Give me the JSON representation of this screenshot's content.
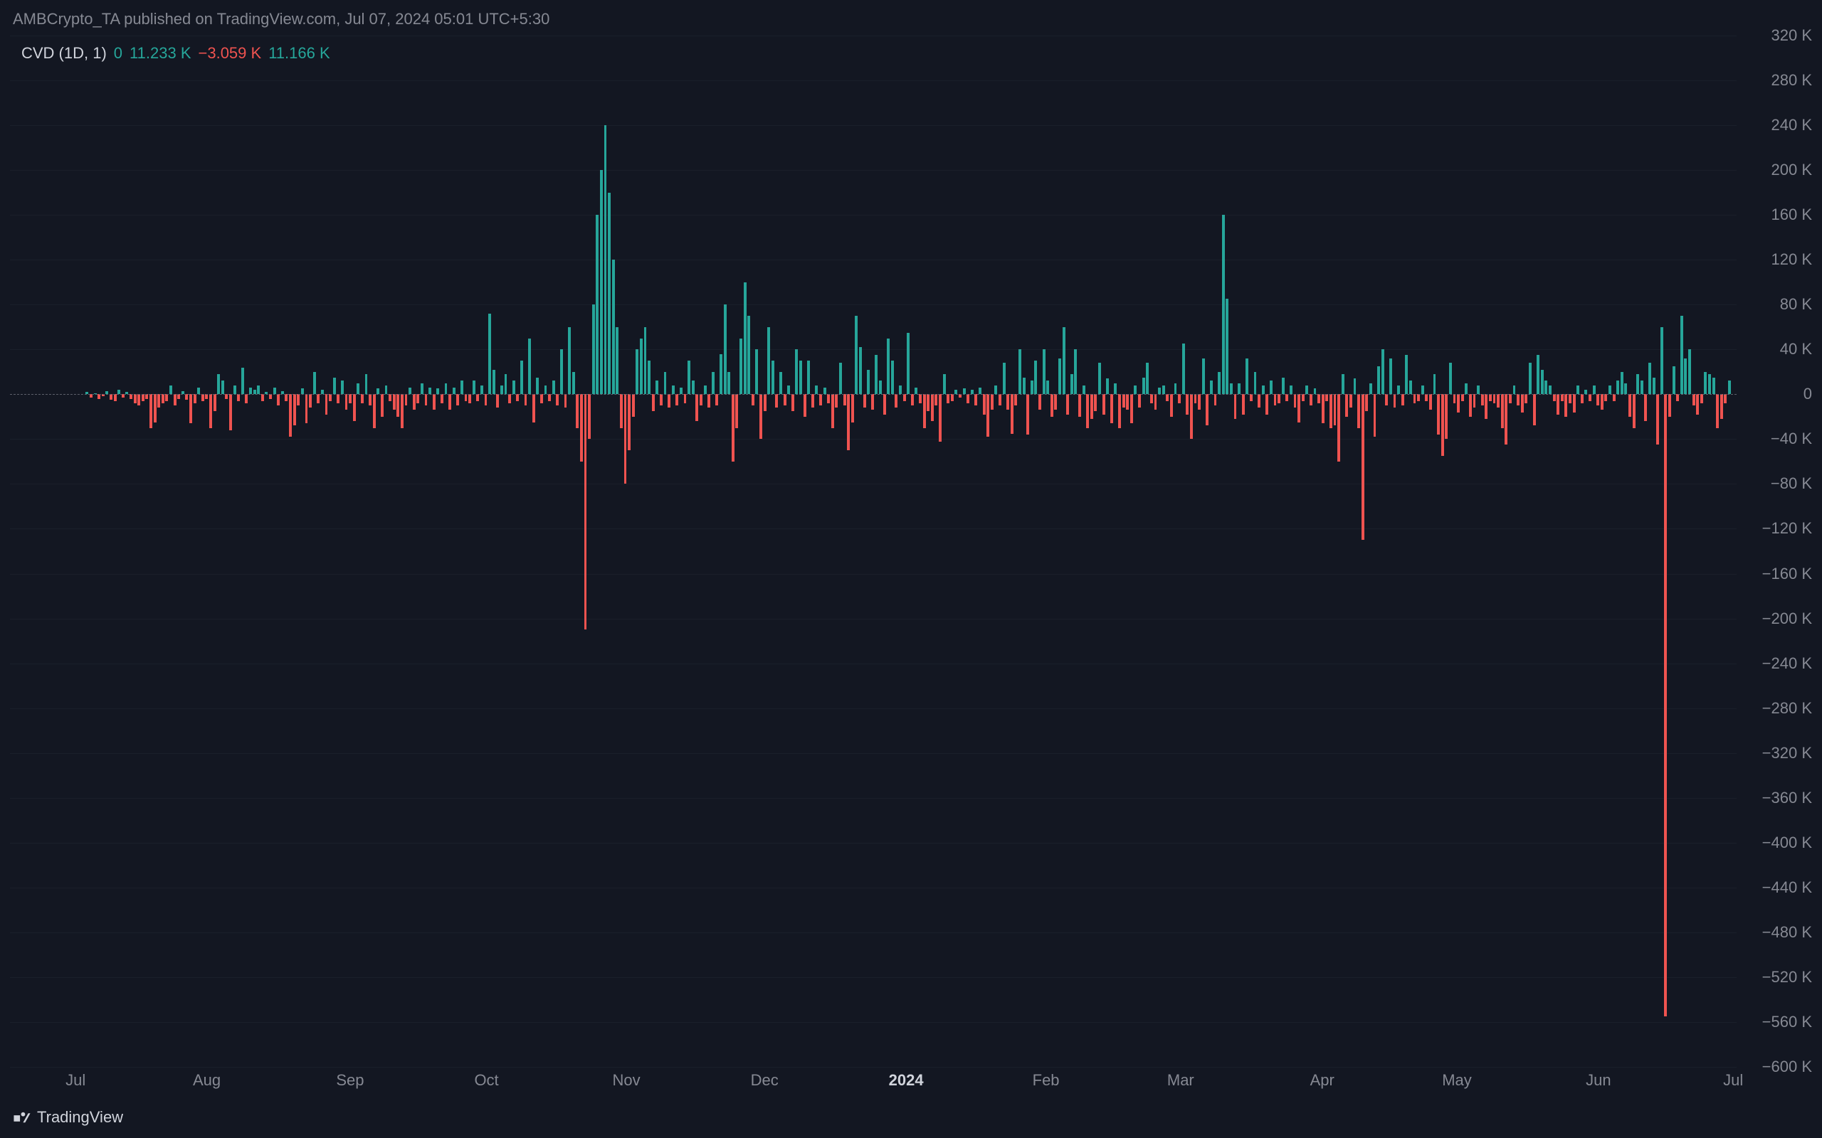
{
  "header": {
    "attribution": "AMBCrypto_TA published on TradingView.com, Jul 07, 2024 05:01 UTC+5:30"
  },
  "legend": {
    "name": "CVD (1D, 1)",
    "open": "0",
    "high": "11.233 K",
    "low": "−3.059 K",
    "close": "11.166 K"
  },
  "footer": {
    "brand": "TradingView"
  },
  "chart": {
    "type": "bar",
    "background_color": "#131722",
    "positive_color": "#26a69a",
    "negative_color": "#ef5350",
    "grid_color": "rgba(120,123,134,0.08)",
    "zero_line_color": "#5d606b",
    "text_color": "#868993",
    "font_size_pt": 16,
    "y_axis": {
      "min": -600,
      "max": 320,
      "step": 40,
      "unit_suffix": "K",
      "labels": [
        "320 K",
        "280 K",
        "240 K",
        "200 K",
        "160 K",
        "120 K",
        "80 K",
        "40 K",
        "0",
        "−40 K",
        "−80 K",
        "−120 K",
        "−160 K",
        "−200 K",
        "−240 K",
        "−280 K",
        "−320 K",
        "−360 K",
        "−400 K",
        "−440 K",
        "−480 K",
        "−520 K",
        "−560 K",
        "−600 K"
      ]
    },
    "x_axis": {
      "labels": [
        {
          "text": "Jul",
          "pos": 0.038,
          "bold": false
        },
        {
          "text": "Aug",
          "pos": 0.114,
          "bold": false
        },
        {
          "text": "Sep",
          "pos": 0.197,
          "bold": false
        },
        {
          "text": "Oct",
          "pos": 0.276,
          "bold": false
        },
        {
          "text": "Nov",
          "pos": 0.357,
          "bold": false
        },
        {
          "text": "Dec",
          "pos": 0.437,
          "bold": false
        },
        {
          "text": "2024",
          "pos": 0.519,
          "bold": true
        },
        {
          "text": "Feb",
          "pos": 0.6,
          "bold": false
        },
        {
          "text": "Mar",
          "pos": 0.678,
          "bold": false
        },
        {
          "text": "Apr",
          "pos": 0.76,
          "bold": false
        },
        {
          "text": "May",
          "pos": 0.838,
          "bold": false
        },
        {
          "text": "Jun",
          "pos": 0.92,
          "bold": false
        },
        {
          "text": "Jul",
          "pos": 0.998,
          "bold": false
        }
      ]
    },
    "bars": [
      0,
      0,
      0,
      0,
      0,
      0,
      0,
      0,
      0,
      0,
      0,
      0,
      0,
      0,
      2,
      -3,
      1,
      -4,
      -2,
      3,
      -5,
      -6,
      4,
      -3,
      2,
      -4,
      -8,
      -10,
      -6,
      -4,
      -30,
      -25,
      -12,
      -8,
      -6,
      8,
      -10,
      -4,
      3,
      -5,
      -26,
      -8,
      6,
      -6,
      -4,
      -30,
      -15,
      18,
      12,
      -4,
      -32,
      8,
      -6,
      24,
      -8,
      6,
      4,
      8,
      -6,
      2,
      -4,
      6,
      -10,
      3,
      -6,
      -38,
      -28,
      -10,
      5,
      -26,
      -12,
      20,
      -8,
      4,
      -18,
      -6,
      15,
      -8,
      12,
      -14,
      -8,
      -24,
      10,
      -8,
      18,
      -10,
      -30,
      5,
      -20,
      8,
      -6,
      -14,
      -20,
      -30,
      -10,
      6,
      -14,
      -8,
      10,
      -10,
      6,
      -14,
      5,
      -8,
      10,
      -14,
      6,
      -10,
      12,
      -6,
      -8,
      12,
      -6,
      8,
      -10,
      72,
      22,
      -12,
      8,
      18,
      -8,
      12,
      -6,
      30,
      -10,
      50,
      -25,
      15,
      -8,
      8,
      -6,
      12,
      -10,
      40,
      -12,
      60,
      20,
      -30,
      -60,
      -210,
      -40,
      80,
      160,
      200,
      240,
      180,
      120,
      60,
      -30,
      -80,
      -50,
      -20,
      40,
      50,
      60,
      30,
      -15,
      12,
      -10,
      20,
      -12,
      8,
      -10,
      6,
      -8,
      30,
      12,
      -24,
      -10,
      8,
      -12,
      20,
      -10,
      36,
      80,
      20,
      -60,
      -30,
      50,
      100,
      70,
      -10,
      40,
      -40,
      -15,
      60,
      30,
      -12,
      20,
      -10,
      8,
      -15,
      40,
      30,
      -20,
      30,
      -12,
      8,
      -10,
      6,
      -8,
      -30,
      -12,
      28,
      -10,
      -50,
      -25,
      70,
      42,
      -12,
      22,
      -14,
      35,
      12,
      -18,
      50,
      30,
      -12,
      8,
      -6,
      55,
      -10,
      6,
      -8,
      -30,
      -15,
      -24,
      -10,
      -42,
      18,
      -8,
      -6,
      4,
      -3,
      5,
      -8,
      4,
      -10,
      6,
      -18,
      -38,
      -14,
      8,
      -10,
      28,
      -14,
      -35,
      -10,
      40,
      15,
      -36,
      12,
      30,
      -14,
      40,
      12,
      -20,
      -14,
      32,
      60,
      -18,
      18,
      40,
      -20,
      8,
      -30,
      -22,
      -15,
      28,
      -18,
      14,
      -26,
      10,
      -30,
      -12,
      -14,
      -26,
      8,
      -12,
      15,
      28,
      -8,
      -14,
      6,
      8,
      -6,
      -20,
      10,
      -8,
      45,
      -18,
      -40,
      -8,
      -14,
      32,
      -28,
      12,
      -10,
      20,
      160,
      85,
      10,
      -22,
      10,
      -18,
      32,
      -6,
      20,
      -12,
      8,
      -18,
      12,
      -10,
      -8,
      15,
      -6,
      8,
      -12,
      -25,
      -6,
      8,
      -10,
      5,
      -8,
      -26,
      -6,
      -30,
      -28,
      -60,
      18,
      -20,
      -12,
      14,
      -30,
      -130,
      -15,
      10,
      -38,
      25,
      40,
      -10,
      32,
      -12,
      8,
      -10,
      35,
      12,
      -8,
      -6,
      8,
      -6,
      -14,
      18,
      -36,
      -55,
      -40,
      28,
      -8,
      -16,
      -6,
      10,
      -20,
      -12,
      8,
      -10,
      -22,
      -6,
      -8,
      -12,
      -30,
      -45,
      -8,
      8,
      -10,
      -16,
      -8,
      28,
      -28,
      35,
      22,
      12,
      8,
      -6,
      -18,
      -6,
      -20,
      -8,
      -16,
      8,
      -8,
      4,
      -6,
      8,
      -10,
      -14,
      -6,
      8,
      -6,
      12,
      20,
      10,
      -20,
      -30,
      18,
      12,
      -24,
      28,
      15,
      -45,
      60,
      -555,
      -20,
      25,
      -6,
      70,
      32,
      40,
      -10,
      -18,
      -8,
      20,
      18,
      15,
      -30,
      -22,
      -8,
      12
    ]
  }
}
